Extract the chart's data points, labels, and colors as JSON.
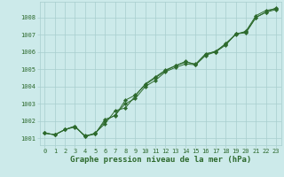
{
  "title": "Graphe pression niveau de la mer (hPa)",
  "hours": [
    0,
    1,
    2,
    3,
    4,
    5,
    6,
    7,
    8,
    9,
    10,
    11,
    12,
    13,
    14,
    15,
    16,
    17,
    18,
    19,
    20,
    21,
    22,
    23
  ],
  "line1": [
    1001.3,
    1001.2,
    1001.5,
    1001.65,
    1001.15,
    1001.25,
    1002.0,
    1002.35,
    1003.0,
    1003.3,
    1004.0,
    1004.35,
    1004.85,
    1005.1,
    1005.3,
    1005.25,
    1005.8,
    1006.0,
    1006.4,
    1007.05,
    1007.1,
    1008.0,
    1008.3,
    1008.45
  ],
  "line2": [
    1001.3,
    1001.2,
    1001.5,
    1001.7,
    1001.1,
    1001.3,
    1001.85,
    1002.6,
    1002.75,
    1003.45,
    1004.15,
    1004.55,
    1004.95,
    1005.2,
    1005.45,
    1005.25,
    1005.85,
    1006.05,
    1006.45,
    1007.05,
    1007.15,
    1008.0,
    1008.3,
    1008.55
  ],
  "line3": [
    1001.3,
    1001.2,
    1001.5,
    1001.7,
    1001.1,
    1001.25,
    1002.1,
    1002.3,
    1003.2,
    1003.5,
    1004.1,
    1004.5,
    1004.9,
    1005.2,
    1005.4,
    1005.3,
    1005.9,
    1006.0,
    1006.5,
    1007.0,
    1007.2,
    1008.1,
    1008.4,
    1008.5
  ],
  "line_color": "#2d6a2d",
  "bg_color": "#cceaea",
  "grid_color": "#a8cece",
  "ylim": [
    1000.6,
    1008.9
  ],
  "yticks": [
    1001,
    1002,
    1003,
    1004,
    1005,
    1006,
    1007,
    1008
  ],
  "xlim": [
    -0.5,
    23.5
  ],
  "title_fontsize": 6.5,
  "tick_fontsize": 5.0,
  "marker_size": 2.2,
  "line_width": 0.7
}
